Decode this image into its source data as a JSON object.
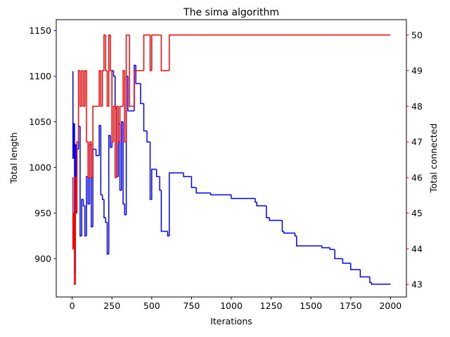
{
  "chart_data": {
    "type": "line",
    "title": "The sima algorithm",
    "x_label": "Iterations",
    "y_label": "Total length",
    "y2_label": "Total connected",
    "drawstyle": "steps-post",
    "xlim": [
      -100,
      2100
    ],
    "xticks": [
      0,
      250,
      500,
      750,
      1000,
      1250,
      1500,
      1750,
      2000
    ],
    "ylim": [
      858,
      1162
    ],
    "yticks": [
      900,
      950,
      1000,
      1050,
      1100,
      1150
    ],
    "y2lim": [
      42.65,
      50.43
    ],
    "y2ticks": [
      43,
      44,
      45,
      46,
      47,
      48,
      49,
      50
    ],
    "x": [
      0,
      5,
      10,
      15,
      20,
      25,
      30,
      40,
      50,
      60,
      70,
      80,
      90,
      100,
      110,
      120,
      130,
      150,
      170,
      180,
      190,
      200,
      210,
      220,
      230,
      240,
      250,
      260,
      270,
      280,
      290,
      300,
      310,
      320,
      330,
      340,
      350,
      360,
      390,
      400,
      430,
      450,
      470,
      490,
      500,
      510,
      530,
      550,
      560,
      570,
      600,
      610,
      700,
      750,
      780,
      870,
      1000,
      1150,
      1160,
      1220,
      1240,
      1320,
      1330,
      1400,
      1410,
      1570,
      1620,
      1650,
      1660,
      1700,
      1750,
      1760,
      1810,
      1870,
      1880,
      2000
    ],
    "series": [
      {
        "name": "Total length",
        "color": "#0000ff",
        "axis": "y",
        "values": [
          1105,
          1010,
          1048,
          883,
          1025,
          990,
          1020,
          1045,
          925,
          965,
          958,
          925,
          990,
          960,
          1025,
          935,
          1020,
          1013,
          1046,
          970,
          965,
          945,
          940,
          905,
          1035,
          1022,
          1106,
          1100,
          1065,
          990,
          1048,
          975,
          1050,
          960,
          948,
          1100,
          1062,
          1062,
          1112,
          1092,
          1070,
          1040,
          1028,
          965,
          998,
          998,
          990,
          975,
          930,
          930,
          925,
          994,
          990,
          978,
          972,
          970,
          966,
          962,
          958,
          945,
          942,
          930,
          928,
          925,
          914,
          912,
          910,
          900,
          900,
          895,
          888,
          888,
          880,
          874,
          872,
          872
        ]
      },
      {
        "name": "Total connected",
        "color": "#ff0000",
        "axis": "y2",
        "values": [
          46,
          44,
          45,
          43,
          46,
          45,
          47,
          49,
          48,
          49,
          48,
          49,
          47,
          46,
          47,
          46,
          48,
          48,
          49,
          48,
          49,
          50,
          49,
          48,
          50,
          49,
          47,
          48,
          46,
          48,
          47,
          48,
          48,
          49,
          47,
          50,
          50,
          48,
          49,
          49,
          49,
          50,
          50,
          49,
          50,
          50,
          50,
          50,
          49,
          49,
          49,
          50,
          50,
          50,
          50,
          50,
          50,
          50,
          50,
          50,
          50,
          50,
          50,
          50,
          50,
          50,
          50,
          50,
          50,
          50,
          50,
          50,
          50,
          50,
          50,
          50
        ]
      }
    ]
  }
}
